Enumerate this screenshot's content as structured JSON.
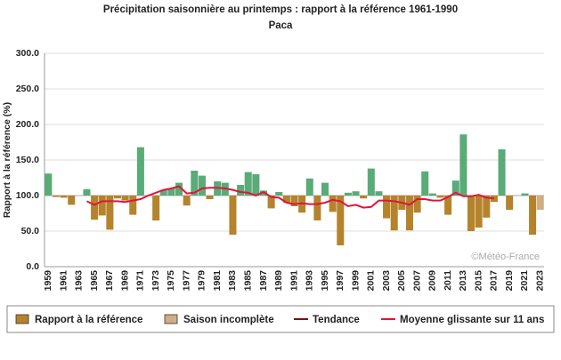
{
  "chart_data": {
    "type": "bar",
    "title": "Précipitation saisonnière au printemps : rapport à la référence 1961-1990",
    "subtitle": "Paca",
    "y_label": "Rapport à la référence (%)",
    "watermark": "©Météo-France",
    "categories": [
      "1959",
      null,
      "1961",
      null,
      "1963",
      null,
      "1965",
      null,
      "1967",
      null,
      "1969",
      null,
      "1971",
      null,
      "1973",
      null,
      "1975",
      null,
      "1977",
      null,
      "1979",
      null,
      "1981",
      null,
      "1983",
      null,
      "1985",
      null,
      "1987",
      null,
      "1989",
      null,
      "1991",
      null,
      "1993",
      null,
      "1995",
      null,
      "1997",
      null,
      "1999",
      null,
      "2001",
      null,
      "2003",
      null,
      "2005",
      null,
      "2007",
      null,
      "2009",
      null,
      "2011",
      null,
      "2013",
      null,
      "2015",
      null,
      "2017",
      null,
      "2019",
      null,
      "2021",
      null,
      "2023"
    ],
    "baseline": 100,
    "above_color": "#5aab77",
    "series": [
      {
        "name": "Rapport à la référence",
        "color": "#b5832c",
        "values": [
          131,
          98,
          97,
          87,
          100,
          109,
          66,
          72,
          52,
          96,
          93,
          73,
          168,
          100,
          65,
          108,
          110,
          118,
          86,
          135,
          128,
          95,
          120,
          118,
          45,
          115,
          133,
          130,
          107,
          82,
          105,
          90,
          85,
          76,
          124,
          65,
          118,
          77,
          30,
          104,
          106,
          96,
          138,
          106,
          68,
          51,
          80,
          51,
          76,
          134,
          103,
          97,
          73,
          121,
          186,
          50,
          55,
          69,
          91,
          165,
          80,
          100,
          103,
          45,
          null
        ]
      },
      {
        "name": "Saison incomplète",
        "color": "#cfae84",
        "values": [
          null,
          null,
          null,
          null,
          null,
          null,
          null,
          null,
          null,
          null,
          null,
          null,
          null,
          null,
          null,
          null,
          null,
          null,
          null,
          null,
          null,
          null,
          null,
          null,
          null,
          null,
          null,
          null,
          null,
          null,
          null,
          null,
          null,
          null,
          null,
          null,
          null,
          null,
          null,
          null,
          null,
          null,
          null,
          null,
          null,
          null,
          null,
          null,
          null,
          null,
          null,
          null,
          null,
          null,
          null,
          null,
          null,
          null,
          null,
          null,
          null,
          null,
          null,
          null,
          80
        ]
      },
      {
        "name": "Tendance",
        "color": "#7a1010"
      },
      {
        "name": "Moyenne glissante sur 11 ans",
        "color": "#e0143c",
        "kind": "line",
        "values": [
          null,
          null,
          null,
          null,
          null,
          92,
          87,
          92,
          92,
          92,
          91,
          93,
          95,
          100,
          104,
          108,
          110,
          113,
          103,
          104,
          110,
          111,
          111,
          110,
          108,
          105,
          104,
          100,
          105,
          98,
          97,
          90,
          88,
          89,
          88,
          88,
          90,
          94,
          92,
          85,
          87,
          83,
          84,
          93,
          93,
          92,
          90,
          87,
          95,
          95,
          93,
          93,
          98,
          104,
          99,
          99,
          101,
          97,
          96,
          null,
          null,
          null,
          null,
          null,
          null
        ]
      }
    ],
    "ylim": [
      0,
      300
    ],
    "yticks": [
      {
        "value": 0,
        "label": "0.0"
      },
      {
        "value": 50,
        "label": "50.0"
      },
      {
        "value": 100,
        "label": "100.0"
      },
      {
        "value": 150,
        "label": "150.0"
      },
      {
        "value": 200,
        "label": "200.0"
      },
      {
        "value": 250,
        "label": "250.0"
      },
      {
        "value": 300,
        "label": "300.0"
      }
    ],
    "grid": true
  }
}
